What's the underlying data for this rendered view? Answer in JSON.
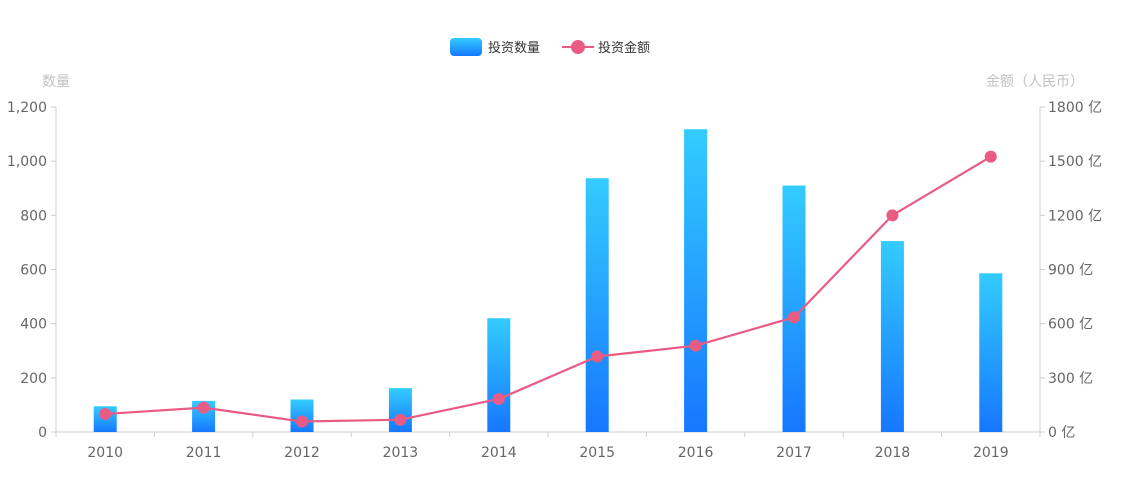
{
  "chart_data": {
    "type": "bar",
    "categories": [
      "2010",
      "2011",
      "2012",
      "2013",
      "2014",
      "2015",
      "2016",
      "2017",
      "2018",
      "2019"
    ],
    "series": [
      {
        "name": "投资数量",
        "type": "bar",
        "axis": "left",
        "values": [
          95,
          115,
          120,
          162,
          420,
          937,
          1118,
          910,
          705,
          586
        ],
        "color_top": "#33ccff",
        "color_bottom": "#1677ff"
      },
      {
        "name": "投资金额",
        "type": "line",
        "axis": "right",
        "values": [
          100,
          135,
          58,
          68,
          183,
          418,
          478,
          635,
          1200,
          1525
        ],
        "color": "#ea5b84"
      }
    ],
    "y_left": {
      "label": "数量",
      "min": 0,
      "max": 1200,
      "ticks": [
        "0",
        "200",
        "400",
        "600",
        "800",
        "1,000",
        "1,200"
      ]
    },
    "y_right": {
      "label": "金额（人民币）",
      "min": 0,
      "max": 1800,
      "ticks": [
        "0 亿",
        "300 亿",
        "600 亿",
        "900 亿",
        "1200 亿",
        "1500 亿",
        "1800 亿"
      ]
    },
    "legend": "top-center",
    "grid": false,
    "axis_color": "#cccccc"
  }
}
